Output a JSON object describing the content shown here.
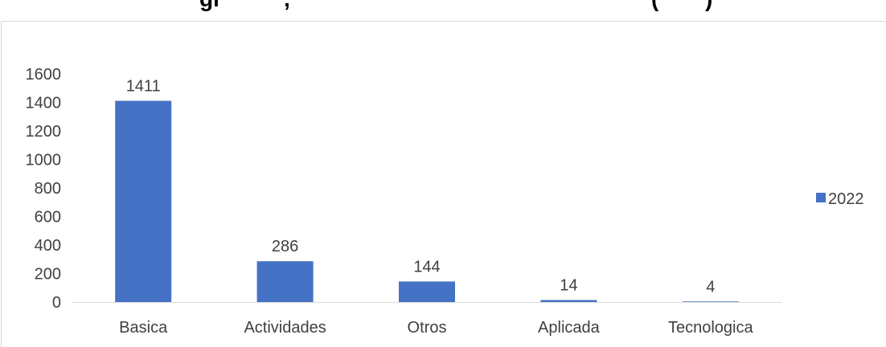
{
  "chart_data": {
    "type": "bar",
    "title": "",
    "title_fragments": [
      "gr",
      ",",
      "(",
      ")"
    ],
    "xlabel": "",
    "ylabel": "",
    "categories": [
      "Basica",
      "Actividades",
      "Otros",
      "Aplicada",
      "Tecnologica"
    ],
    "series": [
      {
        "name": "2022",
        "values": [
          1411,
          286,
          144,
          14,
          4
        ],
        "color": "#4472C4"
      }
    ],
    "data_labels": [
      "1411",
      "286",
      "144",
      "14",
      "4"
    ],
    "ylim": [
      0,
      1600
    ],
    "y_ticks": [
      0,
      200,
      400,
      600,
      800,
      1000,
      1200,
      1400,
      1600
    ],
    "grid": false,
    "legend_position": "right",
    "colors": {
      "bar": "#4472C4",
      "axis": "#d9d9d9",
      "text": "#404040"
    }
  }
}
